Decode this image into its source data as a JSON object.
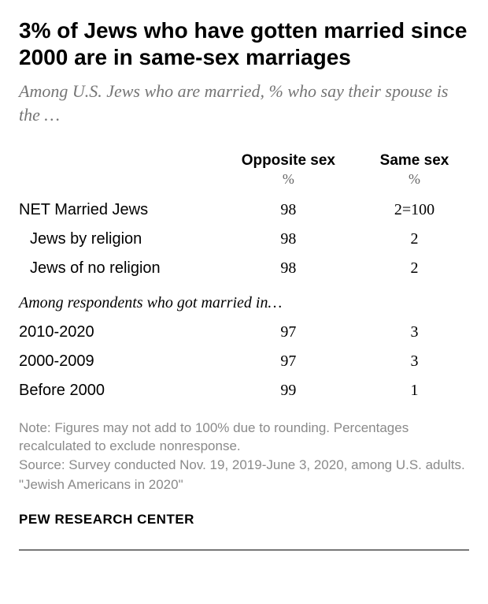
{
  "title": "3% of Jews who have gotten married since 2000 are in same-sex marriages",
  "subtitle": "Among U.S. Jews who are married, % who say their spouse is the …",
  "columns": {
    "col1": "Opposite sex",
    "col2": "Same sex",
    "pct": "%"
  },
  "rows": {
    "net": {
      "label": "NET Married Jews",
      "opp": "98",
      "same": "2=100"
    },
    "rel": {
      "label": "Jews by religion",
      "opp": "98",
      "same": "2"
    },
    "norel": {
      "label": "Jews of no religion",
      "opp": "98",
      "same": "2"
    },
    "section": "Among respondents who got married in…",
    "y2010": {
      "label": "2010-2020",
      "opp": "97",
      "same": "3"
    },
    "y2000": {
      "label": "2000-2009",
      "opp": "97",
      "same": "3"
    },
    "before": {
      "label": "Before 2000",
      "opp": "99",
      "same": "1"
    }
  },
  "notes": {
    "n1": "Note: Figures may not add to 100% due to rounding. Percentages recalculated to exclude nonresponse.",
    "n2": "Source: Survey conducted Nov. 19, 2019-June 3, 2020, among U.S. adults.",
    "n3": "\"Jewish Americans in 2020\""
  },
  "org": "PEW RESEARCH CENTER",
  "style": {
    "type": "table",
    "background_color": "#ffffff",
    "title_color": "#000000",
    "title_fontsize": 28,
    "title_fontweight": 700,
    "subtitle_color": "#757575",
    "subtitle_fontsize": 22,
    "subtitle_fontstyle": "italic",
    "header_fontsize": 19,
    "header_fontweight": 700,
    "body_fontsize": 20,
    "notes_color": "#8a8a8a",
    "notes_fontsize": 17,
    "org_fontsize": 17,
    "org_fontweight": 700,
    "column_widths_pct": [
      44,
      28,
      28
    ],
    "column_alignment": [
      "left",
      "center",
      "center"
    ],
    "title_fontfamily": "sans-serif",
    "subtitle_fontfamily": "serif",
    "values_fontfamily": "serif",
    "line_color": "#000000"
  }
}
